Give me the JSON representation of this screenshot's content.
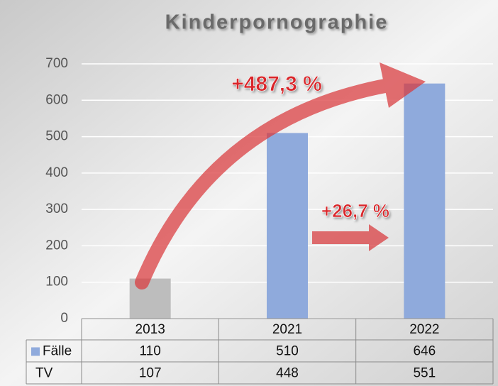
{
  "chart_data": {
    "type": "bar",
    "title": "Kinderpornographie",
    "categories": [
      "2013",
      "2021",
      "2022"
    ],
    "series": [
      {
        "name": "Fälle",
        "color": "#8faadc",
        "values": [
          110,
          510,
          646
        ]
      },
      {
        "name": "TV",
        "values": [
          107,
          448,
          551
        ]
      }
    ],
    "bar_colors": [
      "#bdbdbd",
      "#8faadc",
      "#8faadc"
    ],
    "ylim": [
      0,
      700
    ],
    "yticks": [
      0,
      100,
      200,
      300,
      400,
      500,
      600,
      700
    ],
    "grid": true,
    "annotations": [
      "+487,3 %",
      "+26,7 %"
    ]
  }
}
